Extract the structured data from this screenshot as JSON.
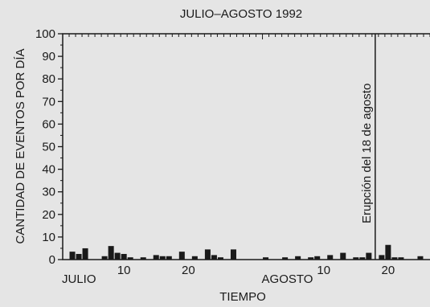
{
  "chart_data": {
    "type": "bar",
    "title": "JULIO–AGOSTO 1992",
    "xlabel": "TIEMPO",
    "ylabel": "CANTIDAD DE EVENTOS POR DÍA",
    "ylim": [
      0,
      100
    ],
    "yticks": [
      0,
      10,
      20,
      30,
      40,
      50,
      60,
      70,
      80,
      90,
      100
    ],
    "x_start": "1992-07-01",
    "x_end": "1992-08-26",
    "month_labels": [
      {
        "text": "JULIO",
        "date": "1992-07-01"
      },
      {
        "text": "AGOSTO",
        "date": "1992-08-01"
      }
    ],
    "day_labels": [
      {
        "text": "10",
        "date": "1992-07-10"
      },
      {
        "text": "20",
        "date": "1992-07-20"
      },
      {
        "text": "10",
        "date": "1992-08-10"
      },
      {
        "text": "20",
        "date": "1992-08-20"
      }
    ],
    "annotation": {
      "text": "Erupción del 18 de agosto",
      "date": "1992-08-18"
    },
    "bar_color": "#1a1a1a",
    "background_color": "#e5e5e5",
    "series": [
      {
        "x": [
          "1992-07-02",
          "1992-07-03",
          "1992-07-04",
          "1992-07-07",
          "1992-07-08",
          "1992-07-09",
          "1992-07-10",
          "1992-07-11",
          "1992-07-13",
          "1992-07-15",
          "1992-07-16",
          "1992-07-17",
          "1992-07-19",
          "1992-07-21",
          "1992-07-23",
          "1992-07-24",
          "1992-07-25",
          "1992-07-27",
          "1992-08-01",
          "1992-08-04",
          "1992-08-06",
          "1992-08-08",
          "1992-08-09",
          "1992-08-11",
          "1992-08-13",
          "1992-08-15",
          "1992-08-16",
          "1992-08-17",
          "1992-08-19",
          "1992-08-20",
          "1992-08-21",
          "1992-08-22",
          "1992-08-25"
        ],
        "values": [
          3.5,
          2.5,
          5,
          1.5,
          6,
          3,
          2.5,
          1,
          1,
          2,
          1.5,
          1.5,
          3.5,
          1.5,
          4.5,
          2,
          1,
          4.5,
          1,
          1,
          1.5,
          1,
          1.5,
          2,
          3,
          1,
          1,
          3,
          2,
          6.5,
          1,
          1,
          1.5
        ]
      }
    ]
  }
}
